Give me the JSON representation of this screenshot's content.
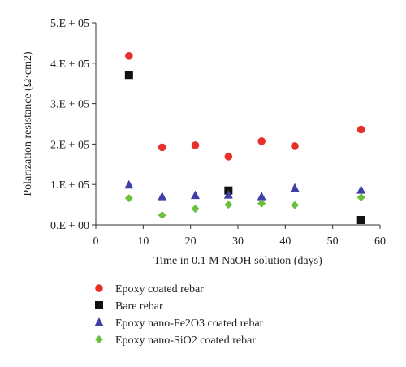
{
  "chart_data": {
    "type": "scatter",
    "xlabel": "Time in 0.1 M NaOH solution (days)",
    "ylabel": "Polarization resistance (Ω·cm2)",
    "xlim": [
      0,
      60
    ],
    "ylim": [
      0,
      500000
    ],
    "x_ticks": [
      "0",
      "10",
      "20",
      "30",
      "40",
      "50",
      "60"
    ],
    "y_ticks": [
      "0.E + 00",
      "1.E + 05",
      "2.E + 05",
      "3.E + 05",
      "4.E + 05",
      "5.E + 05"
    ],
    "grid": false,
    "legend_position": "bottom",
    "series": [
      {
        "name": "Epoxy coated rebar",
        "marker": "circle",
        "color": "#e8302a",
        "points": [
          [
            7,
            418000
          ],
          [
            14,
            192000
          ],
          [
            21,
            197000
          ],
          [
            28,
            169000
          ],
          [
            35,
            207000
          ],
          [
            42,
            195000
          ],
          [
            56,
            236000
          ]
        ]
      },
      {
        "name": "Bare rebar",
        "marker": "square",
        "color": "#111111",
        "points": [
          [
            7,
            371000
          ],
          [
            28,
            85000
          ],
          [
            56,
            12000
          ]
        ]
      },
      {
        "name": "Epoxy nano-Fe2O3 coated rebar",
        "marker": "triangle",
        "color": "#3f3fa8",
        "points": [
          [
            7,
            99000
          ],
          [
            14,
            70000
          ],
          [
            21,
            73000
          ],
          [
            28,
            74000
          ],
          [
            35,
            70000
          ],
          [
            42,
            91000
          ],
          [
            56,
            86000
          ]
        ]
      },
      {
        "name": "Epoxy nano-SiO2 coated rebar",
        "marker": "diamond",
        "color": "#6abf3c",
        "points": [
          [
            7,
            66000
          ],
          [
            14,
            24000
          ],
          [
            21,
            40000
          ],
          [
            28,
            50000
          ],
          [
            35,
            53000
          ],
          [
            42,
            49000
          ],
          [
            56,
            68000
          ]
        ]
      }
    ]
  }
}
